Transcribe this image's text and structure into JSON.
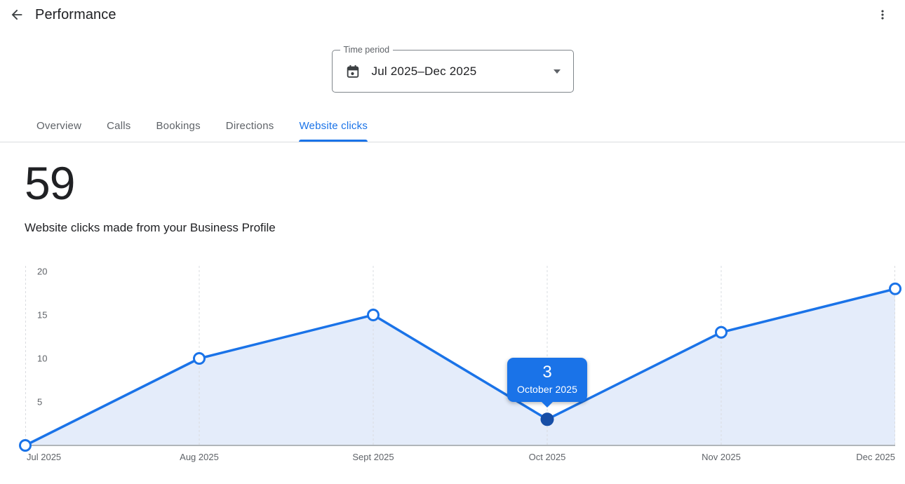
{
  "header": {
    "title": "Performance",
    "back_icon": "arrow-back",
    "menu_icon": "more-vert"
  },
  "time_period": {
    "label": "Time period",
    "value": "Jul 2025–Dec 2025",
    "calendar_icon": "calendar",
    "dropdown_icon": "arrow-drop-down"
  },
  "tabs": [
    {
      "label": "Overview",
      "active": false
    },
    {
      "label": "Calls",
      "active": false
    },
    {
      "label": "Bookings",
      "active": false
    },
    {
      "label": "Directions",
      "active": false
    },
    {
      "label": "Website clicks",
      "active": true
    }
  ],
  "metric": {
    "value": "59",
    "description": "Website clicks made from your Business Profile"
  },
  "chart_data": {
    "type": "area",
    "x": [
      "Jul 2025",
      "Aug 2025",
      "Sept 2025",
      "Oct 2025",
      "Nov 2025",
      "Dec 2025"
    ],
    "series": [
      {
        "name": "Website clicks",
        "values": [
          0,
          10,
          15,
          3,
          13,
          18
        ]
      }
    ],
    "ylim": [
      0,
      20
    ],
    "yticks": [
      5,
      10,
      15,
      20
    ],
    "grid": "vertical-dashed",
    "legend_position": "none",
    "selected_point": {
      "index": 3,
      "value": 3,
      "date_label": "October 2025"
    },
    "colors": {
      "line": "#1a73e8",
      "area": "#e4ecfa",
      "marker_fill": "#ffffff",
      "selected_dot": "#174ea6",
      "tooltip_bg": "#1a73e8",
      "axis_text": "#5f6368",
      "gridline": "#dadce0",
      "baseline": "#b0b5ba"
    }
  },
  "tooltip": {
    "value": "3",
    "date": "October 2025"
  }
}
